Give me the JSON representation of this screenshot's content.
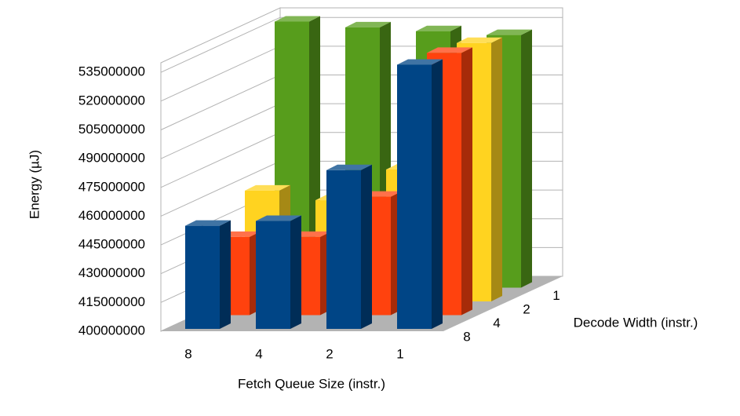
{
  "chart_data": {
    "type": "bar3d",
    "y_label": "Energy (µJ)",
    "x_label": "Fetch Queue Size (instr.)",
    "z_label": "Decode Width (instr.)",
    "categories": [
      "8",
      "4",
      "2",
      "1"
    ],
    "series": [
      {
        "name": "8",
        "color": "#004586",
        "values": [
          455000000,
          457500000,
          484000000,
          539000000
        ]
      },
      {
        "name": "4",
        "color": "#ff420e",
        "values": [
          442000000,
          442000000,
          463000000,
          538000000
        ]
      },
      {
        "name": "2",
        "color": "#ffd320",
        "values": [
          459000000,
          454000000,
          470000000,
          536000000
        ]
      },
      {
        "name": "1",
        "color": "#579d1c",
        "values": [
          540000000,
          537000000,
          535000000,
          533000000
        ]
      }
    ],
    "ylim": [
      400000000,
      540000000
    ],
    "yticks": [
      400000000,
      415000000,
      430000000,
      445000000,
      460000000,
      475000000,
      490000000,
      505000000,
      520000000,
      535000000
    ],
    "grid": true
  }
}
